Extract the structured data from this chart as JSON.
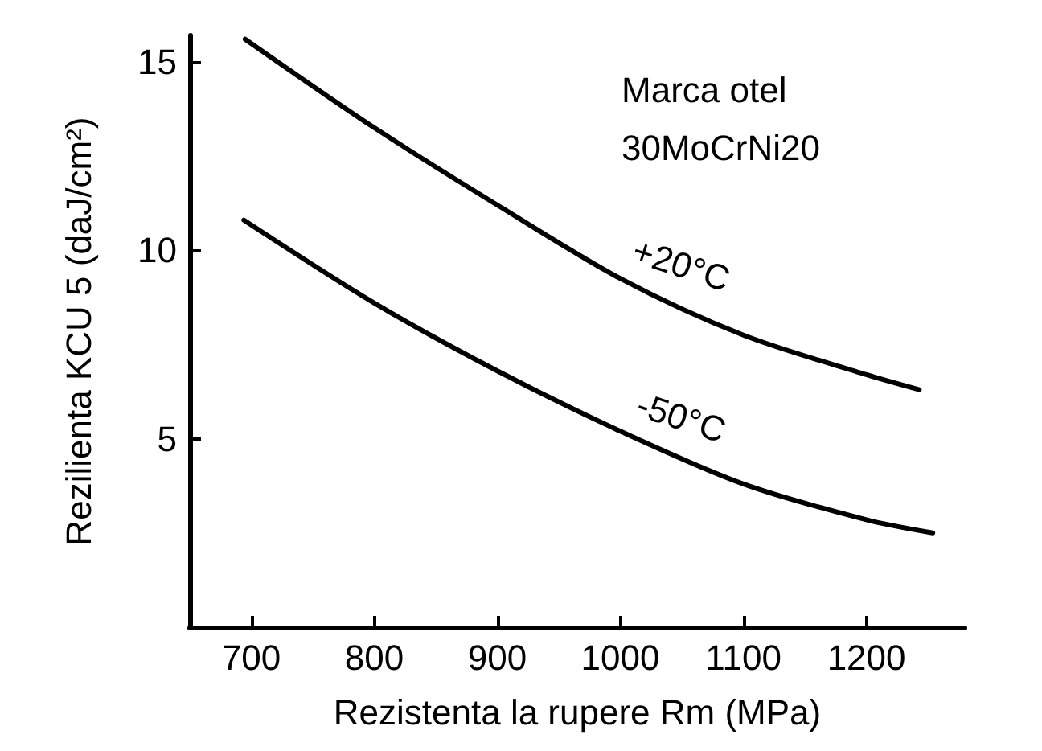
{
  "chart_data": {
    "type": "line",
    "xlabel": "Rezistenta la rupere Rm (MPa)",
    "ylabel": "Rezilienta KCU 5 (daJ/cm²)",
    "annotations": [
      "Marca otel\n30MoCrNi20"
    ],
    "xlim": [
      650,
      1280
    ],
    "xticks": [
      700,
      800,
      900,
      1000,
      1100,
      1200
    ],
    "ylim": [
      0,
      15.7
    ],
    "yticks": [
      5,
      10,
      15
    ],
    "grid": false,
    "legend": false,
    "marker": "none",
    "line_style": "solid",
    "series": [
      {
        "name": "+20°C",
        "color": "#000000",
        "x": [
          695,
          800,
          900,
          1000,
          1100,
          1200,
          1243
        ],
        "values": [
          15.6,
          13.25,
          11.2,
          9.25,
          7.75,
          6.7,
          6.3
        ]
      },
      {
        "name": "-50°C",
        "color": "#000000",
        "x": [
          694,
          800,
          900,
          1000,
          1100,
          1200,
          1254
        ],
        "values": [
          10.8,
          8.6,
          6.8,
          5.2,
          3.8,
          2.85,
          2.5
        ]
      }
    ]
  }
}
